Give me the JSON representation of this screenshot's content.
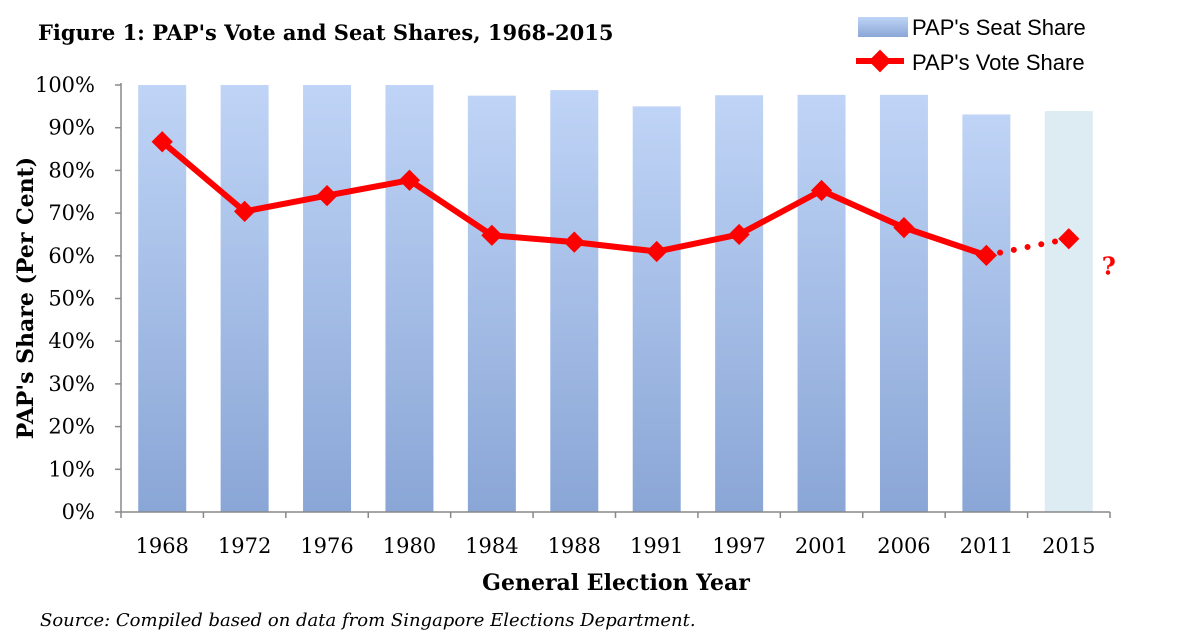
{
  "colors": {
    "bar_top": "#BFD4F6",
    "bar_bottom": "#8AA6D6",
    "bar_projected": "#DDEBF3",
    "line": "#FF0000",
    "axis": "#888888"
  },
  "chart_data": {
    "type": "bar",
    "title": "Figure 1: PAP's Vote and Seat Shares, 1968-2015",
    "xlabel": "General Election Year",
    "ylabel": "PAP's Share (Per Cent)",
    "ylim": [
      0,
      100
    ],
    "ytick_labels": [
      "0%",
      "10%",
      "20%",
      "30%",
      "40%",
      "50%",
      "60%",
      "70%",
      "80%",
      "90%",
      "100%"
    ],
    "grid": false,
    "legend_position": "top-right",
    "categories": [
      "1968",
      "1972",
      "1976",
      "1980",
      "1984",
      "1988",
      "1991",
      "1997",
      "2001",
      "2006",
      "2011",
      "2015"
    ],
    "series": [
      {
        "name": "PAP's Seat Share",
        "type": "bar",
        "values": [
          100,
          100,
          100,
          100,
          97.5,
          98.8,
          95,
          97.6,
          97.7,
          97.7,
          93.1,
          93.9
        ]
      },
      {
        "name": "PAP's Vote Share",
        "type": "line",
        "values": [
          86.7,
          70.4,
          74.1,
          77.7,
          64.8,
          63.2,
          61.0,
          65.0,
          75.3,
          66.6,
          60.1,
          64.0
        ]
      }
    ],
    "annotations": [
      "?"
    ],
    "source": "Source: Compiled based on data from Singapore Elections Department."
  }
}
